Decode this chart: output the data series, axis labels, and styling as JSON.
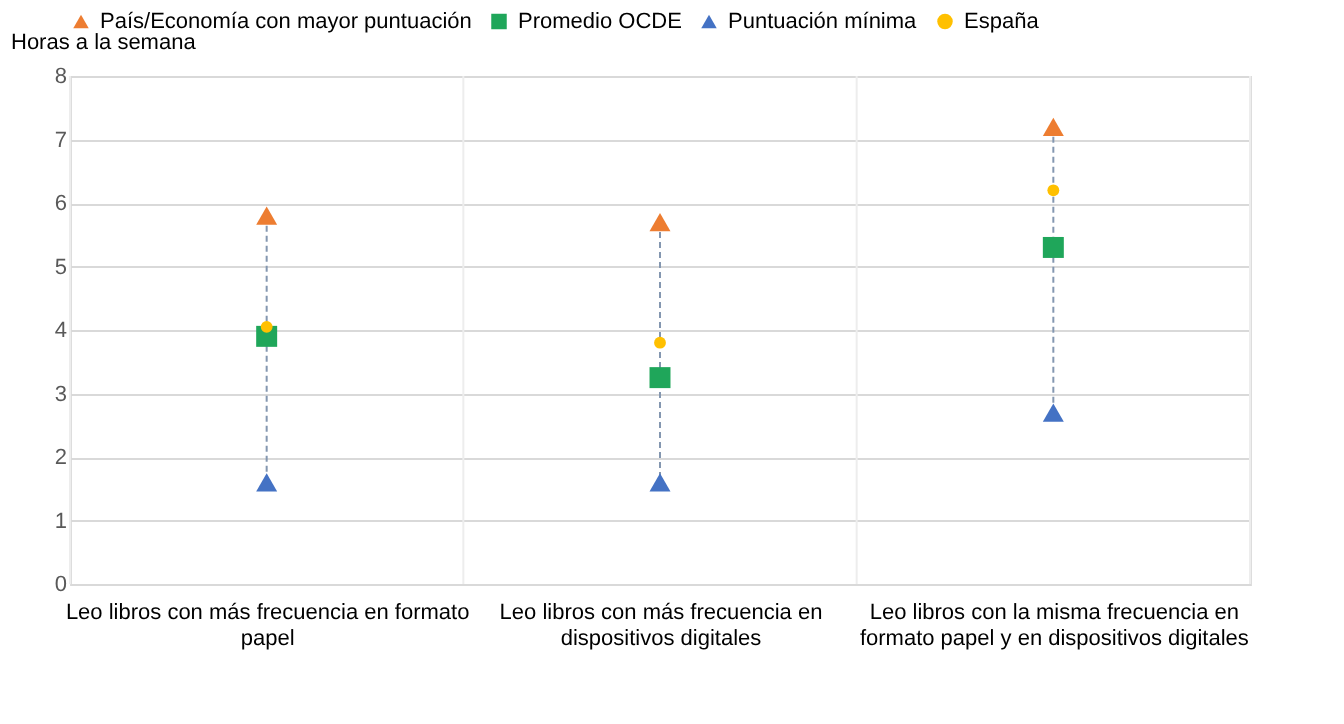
{
  "chart_data": {
    "type": "scatter",
    "ylabel": "Horas a la semana",
    "categories": [
      "Leo libros con más frecuencia en formato papel",
      "Leo libros con más frecuencia en dispositivos digitales",
      "Leo libros con la misma frecuencia en formato papel y en dispositivos digitales"
    ],
    "series": [
      {
        "name": "País/Economía con mayor puntuación",
        "color": "#ed7d31",
        "marker": "triangle",
        "values": [
          5.8,
          5.7,
          7.2
        ]
      },
      {
        "name": "Promedio OCDE",
        "color": "#1fa65a",
        "marker": "square",
        "values": [
          3.9,
          3.25,
          5.3
        ]
      },
      {
        "name": "Puntuación mínima",
        "color": "#4472c4",
        "marker": "triangle",
        "values": [
          1.6,
          1.6,
          2.7
        ]
      },
      {
        "name": "España",
        "color": "#ffc000",
        "marker": "circle",
        "values": [
          4.05,
          3.8,
          6.2
        ]
      }
    ],
    "ylim": [
      0,
      8
    ],
    "yticks": [
      0,
      1,
      2,
      3,
      4,
      5,
      6,
      7,
      8
    ],
    "grid": true,
    "legend": "top"
  }
}
